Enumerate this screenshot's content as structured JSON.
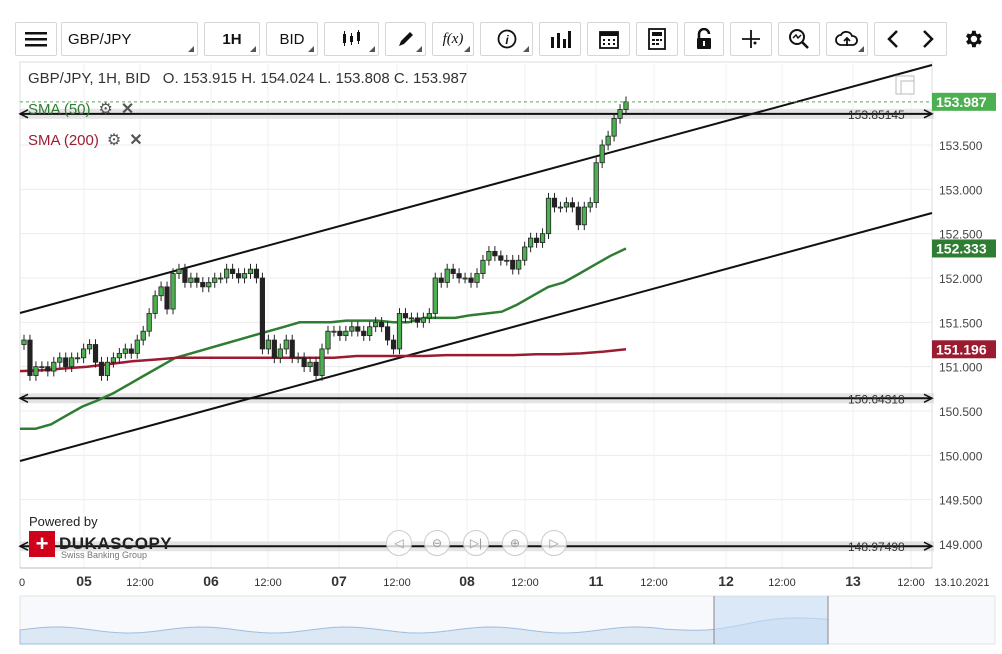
{
  "toolbar": {
    "symbol": "GBP/JPY",
    "timeframe": "1H",
    "price_side": "BID",
    "icons": [
      "menu-icon",
      "candlestick-icon",
      "pencil-icon",
      "function-icon",
      "info-icon",
      "bars-icon",
      "calendar-icon",
      "calculator-icon",
      "lock-icon",
      "crosshair-icon",
      "zoom-icon",
      "cloud-upload-icon",
      "chevron-left-icon",
      "chevron-right-icon",
      "gear-icon"
    ]
  },
  "header": {
    "instrument": "GBP/JPY, 1H, BID",
    "open": "O. 153.915",
    "high": "H. 154.024",
    "low": "L. 153.808",
    "close": "C. 153.987"
  },
  "indicators": [
    {
      "label": "SMA (50)",
      "color": "#2e7d32"
    },
    {
      "label": "SMA (200)",
      "color": "#9b1c31"
    }
  ],
  "price_tags": {
    "last": "153.987",
    "sma50": "152.333",
    "sma200": "151.196"
  },
  "branding": {
    "powered_by": "Powered by",
    "brand": "DUKASCOPY",
    "tagline": "Swiss Banking Group"
  },
  "chart_data": {
    "type": "candlestick",
    "x_axis_labels": [
      "0",
      "05",
      "12:00",
      "06",
      "12:00",
      "07",
      "12:00",
      "08",
      "12:00",
      "11",
      "12:00",
      "12",
      "12:00",
      "13",
      "12:00",
      "13.10.2021"
    ],
    "y_ticks": [
      "149.000",
      "149.500",
      "150.000",
      "150.500",
      "151.000",
      "151.500",
      "152.000",
      "152.500",
      "153.000",
      "153.500"
    ],
    "ylim": [
      148.9,
      154.3
    ],
    "horizontal_lines": [
      {
        "label": "153.85145",
        "value": 153.85145
      },
      {
        "label": "150.64318",
        "value": 150.64318
      },
      {
        "label": "148.97498",
        "value": 148.97498
      }
    ],
    "closes": [
      151.3,
      150.9,
      151.0,
      151.0,
      150.95,
      151.05,
      151.1,
      151.0,
      151.1,
      151.1,
      151.2,
      151.25,
      151.05,
      150.9,
      151.05,
      151.1,
      151.15,
      151.2,
      151.15,
      151.3,
      151.4,
      151.6,
      151.8,
      151.9,
      151.65,
      152.05,
      152.1,
      151.95,
      152.0,
      151.95,
      151.9,
      151.95,
      152.0,
      152.0,
      152.1,
      152.05,
      152.0,
      152.05,
      152.1,
      152.0,
      151.2,
      151.3,
      151.1,
      151.2,
      151.3,
      151.1,
      151.1,
      151.0,
      151.05,
      150.9,
      151.2,
      151.4,
      151.4,
      151.35,
      151.4,
      151.45,
      151.4,
      151.35,
      151.45,
      151.5,
      151.45,
      151.3,
      151.2,
      151.6,
      151.55,
      151.55,
      151.5,
      151.55,
      151.6,
      152.0,
      151.95,
      152.1,
      152.05,
      152.0,
      152.0,
      151.95,
      152.05,
      152.2,
      152.3,
      152.25,
      152.2,
      152.2,
      152.1,
      152.2,
      152.35,
      152.45,
      152.4,
      152.5,
      152.9,
      152.8,
      152.8,
      152.85,
      152.8,
      152.6,
      152.8,
      152.85,
      153.3,
      153.5,
      153.6,
      153.8,
      153.9,
      153.987
    ],
    "series": [
      {
        "name": "SMA (50)",
        "values": [
          150.3,
          150.3,
          150.35,
          150.45,
          150.55,
          150.62,
          150.7,
          150.8,
          150.9,
          151.0,
          151.1,
          151.15,
          151.2,
          151.25,
          151.3,
          151.35,
          151.4,
          151.45,
          151.5,
          151.5,
          151.5,
          151.52,
          151.52,
          151.52,
          151.5,
          151.5,
          151.55,
          151.55,
          151.55,
          151.58,
          151.6,
          151.62,
          151.7,
          151.8,
          151.9,
          151.95,
          152.05,
          152.15,
          152.25,
          152.333
        ]
      },
      {
        "name": "SMA (200)",
        "values": [
          150.95,
          150.96,
          150.98,
          151.0,
          151.03,
          151.06,
          151.08,
          151.1,
          151.1,
          151.1,
          151.1,
          151.1,
          151.1,
          151.1,
          151.1,
          151.12,
          151.12,
          151.12,
          151.12,
          151.13,
          151.13,
          151.13,
          151.13,
          151.14,
          151.14,
          151.15,
          151.17,
          151.196
        ]
      }
    ]
  }
}
